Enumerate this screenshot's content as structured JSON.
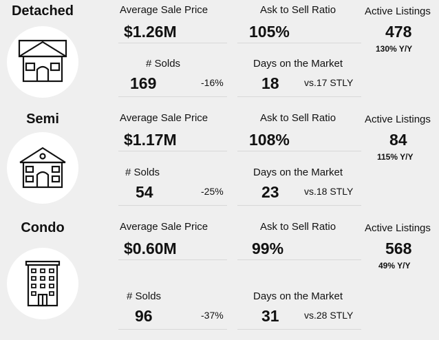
{
  "sections": [
    {
      "type": "Detached",
      "icon": "detached-house-icon",
      "avg_price_label": "Average Sale Price",
      "avg_price": "$1.26M",
      "ask_ratio_label": "Ask to Sell Ratio",
      "ask_ratio": "105%",
      "active_label": "Active Listings",
      "active": "478",
      "active_yoy": "130% Y/Y",
      "solds_label": "# Solds",
      "solds": "169",
      "solds_change": "-16%",
      "dom_label": "Days on the Market",
      "dom": "18",
      "dom_stly": "vs.17 STLY"
    },
    {
      "type": "Semi",
      "icon": "semi-house-icon",
      "avg_price_label": "Average Sale Price",
      "avg_price": "$1.17M",
      "ask_ratio_label": "Ask to Sell Ratio",
      "ask_ratio": "108%",
      "active_label": "Active Listings",
      "active": "84",
      "active_yoy": "115% Y/Y",
      "solds_label": "# Solds",
      "solds": "54",
      "solds_change": "-25%",
      "dom_label": "Days on the Market",
      "dom": "23",
      "dom_stly": "vs.18 STLY"
    },
    {
      "type": "Condo",
      "icon": "condo-building-icon",
      "avg_price_label": "Average Sale Price",
      "avg_price": "$0.60M",
      "ask_ratio_label": "Ask to Sell Ratio",
      "ask_ratio": "99%",
      "active_label": "Active Listings",
      "active": "568",
      "active_yoy": "49% Y/Y",
      "solds_label": "# Solds",
      "solds": "96",
      "solds_change": "-37%",
      "dom_label": "Days on the Market",
      "dom": "31",
      "dom_stly": "vs.28 STLY"
    }
  ]
}
